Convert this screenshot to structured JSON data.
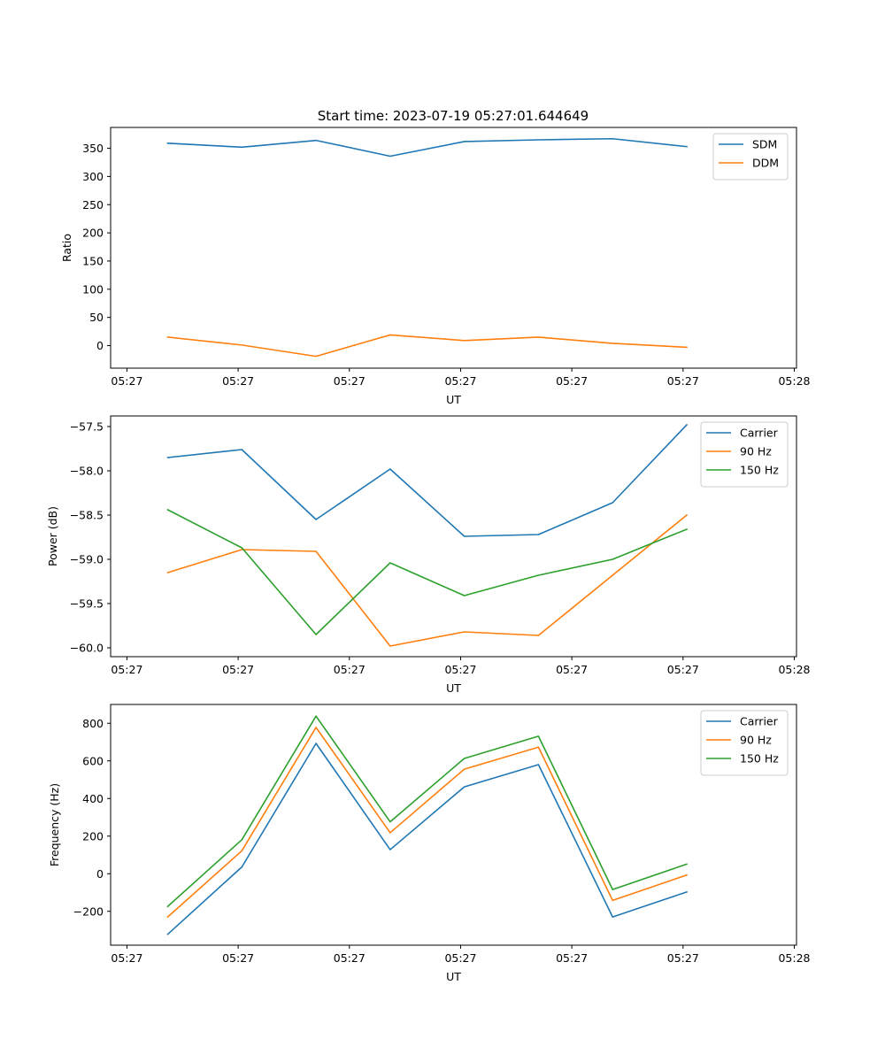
{
  "title": "Start time: 2023-07-19 05:27:01.644649",
  "chart_data": [
    {
      "type": "line",
      "xlabel": "UT",
      "ylabel": "Ratio",
      "x": [
        1,
        2,
        3,
        4,
        5,
        6,
        7,
        8
      ],
      "xlim": [
        0.23,
        9.48
      ],
      "x_ticks": [
        0.45,
        1.95,
        3.45,
        4.95,
        6.45,
        7.95,
        9.45
      ],
      "x_tick_labels": [
        "05:27",
        "05:27",
        "05:27",
        "05:27",
        "05:27",
        "05:27",
        "05:28"
      ],
      "ylim": [
        -40,
        387
      ],
      "y_ticks": [
        0,
        50,
        100,
        150,
        200,
        250,
        300,
        350
      ],
      "y_tick_labels": [
        "0",
        "50",
        "100",
        "150",
        "200",
        "250",
        "300",
        "350"
      ],
      "legend_position": "top-right",
      "series": [
        {
          "name": "SDM",
          "color": "#1f77b4",
          "values": [
            359,
            352,
            364,
            336,
            362,
            365,
            367,
            353
          ]
        },
        {
          "name": "DDM",
          "color": "#ff7f0e",
          "values": [
            15,
            1,
            -19,
            19,
            9,
            15,
            4,
            -3
          ]
        }
      ]
    },
    {
      "type": "line",
      "xlabel": "UT",
      "ylabel": "Power (dB)",
      "x": [
        1,
        2,
        3,
        4,
        5,
        6,
        7,
        8
      ],
      "xlim": [
        0.23,
        9.48
      ],
      "x_ticks": [
        0.45,
        1.95,
        3.45,
        4.95,
        6.45,
        7.95,
        9.45
      ],
      "x_tick_labels": [
        "05:27",
        "05:27",
        "05:27",
        "05:27",
        "05:27",
        "05:27",
        "05:28"
      ],
      "ylim": [
        -60.1,
        -57.38
      ],
      "y_ticks": [
        -60.0,
        -59.5,
        -59.0,
        -58.5,
        -58.0,
        -57.5
      ],
      "y_tick_labels": [
        "−60.0",
        "−59.5",
        "−59.0",
        "−58.5",
        "−58.0",
        "−57.5"
      ],
      "legend_position": "top-right",
      "series": [
        {
          "name": "Carrier",
          "color": "#1f77b4",
          "values": [
            -57.85,
            -57.76,
            -58.55,
            -57.98,
            -58.74,
            -58.72,
            -58.36,
            -57.48
          ]
        },
        {
          "name": "90 Hz",
          "color": "#ff7f0e",
          "values": [
            -59.15,
            -58.89,
            -58.91,
            -59.98,
            -59.82,
            -59.86,
            -59.18,
            -58.5
          ]
        },
        {
          "name": "150 Hz",
          "color": "#2ca02c",
          "values": [
            -58.44,
            -58.87,
            -59.85,
            -59.04,
            -59.41,
            -59.18,
            -59.0,
            -58.66
          ]
        }
      ]
    },
    {
      "type": "line",
      "xlabel": "UT",
      "ylabel": "Frequency (Hz)",
      "x": [
        1,
        2,
        3,
        4,
        5,
        6,
        7,
        8
      ],
      "xlim": [
        0.23,
        9.48
      ],
      "x_ticks": [
        0.45,
        1.95,
        3.45,
        4.95,
        6.45,
        7.95,
        9.45
      ],
      "x_tick_labels": [
        "05:27",
        "05:27",
        "05:27",
        "05:27",
        "05:27",
        "05:27",
        "05:28"
      ],
      "ylim": [
        -380,
        900
      ],
      "y_ticks": [
        -200,
        0,
        200,
        400,
        600,
        800
      ],
      "y_tick_labels": [
        "−200",
        "0",
        "200",
        "400",
        "600",
        "800"
      ],
      "legend_position": "top-right",
      "series": [
        {
          "name": "Carrier",
          "color": "#1f77b4",
          "values": [
            -322,
            36,
            693,
            128,
            462,
            580,
            -230,
            -97
          ]
        },
        {
          "name": "90 Hz",
          "color": "#ff7f0e",
          "values": [
            -230,
            122,
            778,
            218,
            556,
            673,
            -142,
            -7
          ]
        },
        {
          "name": "150 Hz",
          "color": "#2ca02c",
          "values": [
            -174,
            181,
            838,
            276,
            613,
            731,
            -84,
            51
          ]
        }
      ]
    }
  ]
}
